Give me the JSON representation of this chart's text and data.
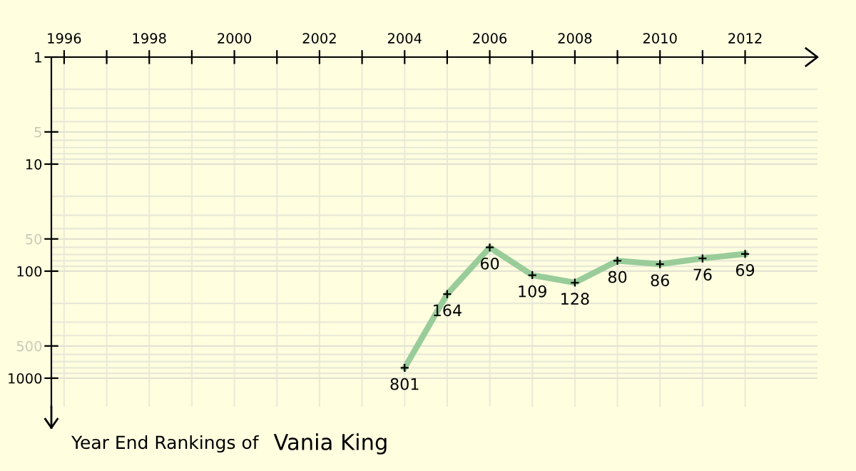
{
  "chart_data": {
    "type": "line",
    "title": "Year End Rankings of",
    "subtitle": "Vania King",
    "x": [
      2004,
      2005,
      2006,
      2007,
      2008,
      2009,
      2010,
      2011,
      2012
    ],
    "series": [
      {
        "color": "#99cc99",
        "values": [
          801,
          164,
          60,
          109,
          128,
          80,
          86,
          76,
          69
        ]
      }
    ],
    "xlim": [
      1995.7,
      2013.7
    ],
    "xticks": [
      1996,
      {
        "value": 1997,
        "label": null
      },
      1998,
      {
        "value": 1999,
        "label": null
      },
      2000,
      {
        "value": 2001,
        "label": null
      },
      2002,
      {
        "value": 2003,
        "label": null
      },
      2004,
      {
        "value": 2005,
        "label": null
      },
      2006,
      {
        "value": 2007,
        "label": null
      },
      2008,
      {
        "value": 2009,
        "label": null
      },
      2010,
      {
        "value": 2011,
        "label": null
      },
      2012
    ],
    "ylim": [
      1850,
      1
    ],
    "yticks": [
      1,
      5,
      10,
      50,
      100,
      500,
      1000
    ],
    "log": "y",
    "grid": true,
    "marker": "cross",
    "line_style": "solid",
    "data_labels": true
  }
}
